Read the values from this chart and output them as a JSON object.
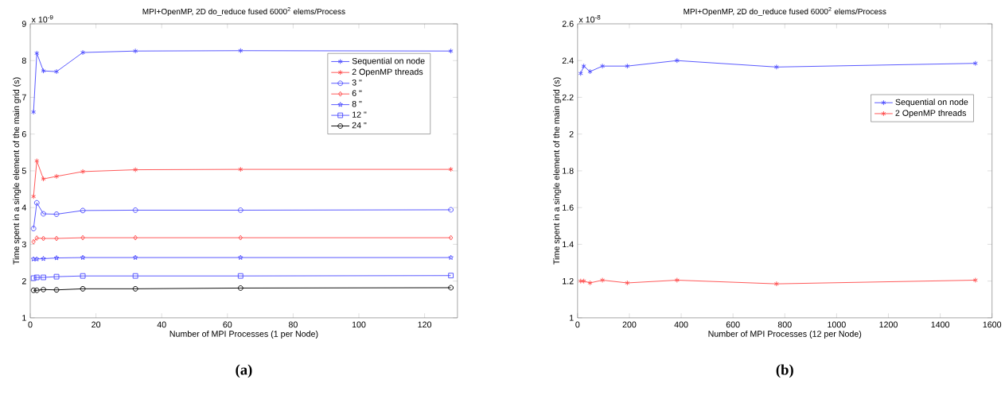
{
  "chart_data": [
    {
      "type": "line",
      "title": "MPI+OpenMP, 2D do_reduce fused 6000$^{2}$ elems/Process",
      "xlabel": "Number of MPI Processes (1 per Node)",
      "ylabel": "Time spent in a single element of the main grid (s)",
      "annotations": [
        "x 10$^{-9}$",
        "(a)"
      ],
      "x": [
        1,
        2,
        4,
        8,
        16,
        32,
        64,
        128
      ],
      "xlim": [
        0,
        130
      ],
      "xticks": [
        0,
        20,
        40,
        60,
        80,
        100,
        120
      ],
      "ylim": [
        1,
        9
      ],
      "yticks": [
        1,
        2,
        3,
        4,
        5,
        6,
        7,
        8,
        9
      ],
      "legend": "top right",
      "grid": false,
      "line_style": "solid",
      "series": [
        {
          "name": "Sequential on node",
          "color": "#4d4dff",
          "marker": "cross",
          "values": [
            6.6,
            8.2,
            7.72,
            7.7,
            8.22,
            8.26,
            8.27,
            8.26
          ]
        },
        {
          "name": "2 OpenMP threads",
          "color": "#ff4d4d",
          "marker": "cross",
          "values": [
            4.3,
            5.27,
            4.78,
            4.85,
            4.98,
            5.03,
            5.04,
            5.04
          ]
        },
        {
          "name": "3 \"",
          "color": "#4d4dff",
          "marker": "circle",
          "values": [
            3.43,
            4.13,
            3.83,
            3.82,
            3.92,
            3.93,
            3.93,
            3.94
          ]
        },
        {
          "name": "6 \"",
          "color": "#ff4d4d",
          "marker": "diamond",
          "values": [
            3.07,
            3.17,
            3.16,
            3.16,
            3.18,
            3.18,
            3.18,
            3.18
          ]
        },
        {
          "name": "8 \"",
          "color": "#4d4dff",
          "marker": "star",
          "values": [
            2.6,
            2.6,
            2.61,
            2.63,
            2.64,
            2.64,
            2.64,
            2.64
          ]
        },
        {
          "name": "12 \"",
          "color": "#4d4dff",
          "marker": "square",
          "values": [
            2.08,
            2.1,
            2.1,
            2.12,
            2.14,
            2.14,
            2.14,
            2.15
          ]
        },
        {
          "name": "24 \"",
          "color": "#000000",
          "marker": "circle",
          "values": [
            1.75,
            1.75,
            1.77,
            1.76,
            1.79,
            1.79,
            1.81,
            1.82
          ]
        }
      ]
    },
    {
      "type": "line",
      "title": "MPI+OpenMP, 2D do_reduce fused 6000$^{2}$ elems/Process",
      "xlabel": "Number of MPI Processes (12 per Node)",
      "ylabel": "Time spent in a single element of the main grid (s)",
      "annotations": [
        "x 10$^{-8}$",
        "(b)"
      ],
      "x": [
        12,
        24,
        48,
        96,
        192,
        384,
        768,
        1536
      ],
      "xlim": [
        0,
        1600
      ],
      "xticks": [
        0,
        200,
        400,
        600,
        800,
        1000,
        1200,
        1400,
        1600
      ],
      "ylim": [
        1,
        2.6
      ],
      "yticks": [
        1,
        1.2,
        1.4,
        1.6,
        1.8,
        2,
        2.2,
        2.4,
        2.6
      ],
      "legend": "right",
      "grid": false,
      "line_style": "solid",
      "series": [
        {
          "name": "Sequential on node",
          "color": "#4d4dff",
          "marker": "cross",
          "values": [
            2.33,
            2.37,
            2.34,
            2.37,
            2.37,
            2.4,
            2.365,
            2.385
          ]
        },
        {
          "name": "2 OpenMP threads",
          "color": "#ff4d4d",
          "marker": "cross",
          "values": [
            1.2,
            1.2,
            1.19,
            1.205,
            1.19,
            1.205,
            1.185,
            1.205
          ]
        }
      ]
    }
  ]
}
